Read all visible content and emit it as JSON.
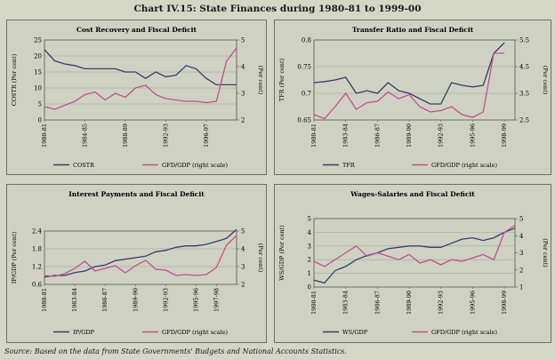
{
  "page_title": "Chart IV.15: State Finances during 1980-81 to 1999-00",
  "source_note": "Source: Based on the data from State Governments' Budgets and National Accounts Statistics.",
  "colors": {
    "left_series": "#3a3a6e",
    "right_series": "#c0508f",
    "grid": "#9aa08c"
  },
  "chart_data": [
    {
      "type": "line",
      "title": "Cost Recovery and Fiscal Deficit",
      "x": [
        "1980-81",
        "1981-82",
        "1982-83",
        "1983-84",
        "1984-85",
        "1985-86",
        "1986-87",
        "1987-88",
        "1988-89",
        "1989-90",
        "1990-91",
        "1991-92",
        "1992-93",
        "1993-94",
        "1994-95",
        "1995-96",
        "1996-97",
        "1997-98",
        "1998-99",
        "1999-00"
      ],
      "xticks": [
        "1980-81",
        "1984-85",
        "1988-89",
        "1992-93",
        "1996-97"
      ],
      "ylabel": "COSTR (Per cent)",
      "y2label": "(Per cent)",
      "ylim": [
        0,
        25
      ],
      "yticks": [
        0,
        5,
        10,
        15,
        20,
        25
      ],
      "y2lim": [
        2,
        5
      ],
      "y2ticks": [
        2,
        3,
        4,
        5
      ],
      "series": [
        {
          "name": "COSTR",
          "axis": "left",
          "values": [
            22,
            18.5,
            17.5,
            17,
            16,
            16,
            16,
            16,
            15,
            15,
            13,
            15,
            13.5,
            14,
            17,
            16,
            13,
            11,
            11,
            11
          ]
        },
        {
          "name": "GFD/GDP (right scale)",
          "axis": "right",
          "values": [
            2.5,
            2.4,
            2.55,
            2.7,
            2.95,
            3.05,
            2.75,
            3.0,
            2.85,
            3.2,
            3.3,
            2.95,
            2.8,
            2.75,
            2.7,
            2.7,
            2.65,
            2.7,
            4.2,
            4.7
          ]
        }
      ]
    },
    {
      "type": "line",
      "title": "Transfer Ratio and Fiscal Deficit",
      "x": [
        "1980-81",
        "1981-82",
        "1982-83",
        "1983-84",
        "1984-85",
        "1985-86",
        "1986-87",
        "1987-88",
        "1988-89",
        "1989-90",
        "1990-91",
        "1991-92",
        "1992-93",
        "1993-94",
        "1994-95",
        "1995-96",
        "1996-97",
        "1997-98",
        "1998-99",
        "1999-00"
      ],
      "xticks": [
        "1980-81",
        "1983-84",
        "1986-87",
        "1989-90",
        "1992-93",
        "1995-96",
        "1998-99"
      ],
      "ylabel": "TFR (Per cent)",
      "y2label": "(Per cent)",
      "ylim": [
        0.65,
        0.8
      ],
      "yticks": [
        0.65,
        0.7,
        0.75,
        0.8
      ],
      "y2lim": [
        2.5,
        5.5
      ],
      "y2ticks": [
        2.5,
        3.5,
        4.5,
        5.5
      ],
      "series": [
        {
          "name": "TFR",
          "axis": "left",
          "values": [
            0.72,
            0.722,
            0.725,
            0.73,
            0.7,
            0.705,
            0.7,
            0.72,
            0.705,
            0.7,
            0.69,
            0.68,
            0.68,
            0.72,
            0.715,
            0.712,
            0.715,
            0.775,
            0.795,
            null
          ]
        },
        {
          "name": "GFD/GDP (right scale)",
          "axis": "right",
          "values": [
            2.7,
            2.55,
            3.0,
            3.5,
            2.9,
            3.15,
            3.2,
            3.55,
            3.3,
            3.45,
            3.0,
            2.8,
            2.85,
            3.0,
            2.7,
            2.6,
            2.8,
            5.0,
            5.0,
            null
          ]
        }
      ]
    },
    {
      "type": "line",
      "title": "Interest Payments and Fiscal Deficit",
      "x": [
        "1980-81",
        "1981-82",
        "1982-83",
        "1983-84",
        "1984-85",
        "1985-86",
        "1986-87",
        "1987-88",
        "1988-89",
        "1989-90",
        "1990-91",
        "1991-92",
        "1992-93",
        "1993-94",
        "1994-95",
        "1995-96",
        "1996-97",
        "1997-98",
        "1998-99",
        "1999-00"
      ],
      "xticks": [
        "1980-81",
        "1983-84",
        "1986-87",
        "1989-90",
        "1992-93",
        "1995-96",
        "1997-98"
      ],
      "ylabel": "IP/GDP (Per cent)",
      "y2label": "(Per cent)",
      "ylim": [
        0.6,
        2.4
      ],
      "yticks": [
        0.6,
        1.2,
        1.8,
        2.4
      ],
      "y2lim": [
        2,
        5
      ],
      "y2ticks": [
        2,
        3,
        4,
        5
      ],
      "series": [
        {
          "name": "IP/GDP",
          "axis": "left",
          "values": [
            0.85,
            0.9,
            0.9,
            1.0,
            1.05,
            1.2,
            1.25,
            1.4,
            1.45,
            1.5,
            1.55,
            1.7,
            1.75,
            1.85,
            1.9,
            1.9,
            1.95,
            2.05,
            2.15,
            2.45
          ]
        },
        {
          "name": "GFD/GDP (right scale)",
          "axis": "right",
          "values": [
            2.5,
            2.45,
            2.6,
            2.9,
            3.3,
            2.75,
            2.9,
            3.05,
            2.65,
            3.05,
            3.35,
            2.85,
            2.8,
            2.5,
            2.55,
            2.5,
            2.55,
            2.95,
            4.2,
            4.75
          ]
        }
      ]
    },
    {
      "type": "line",
      "title": "Wages-Salaries and Fiscal Deficit",
      "x": [
        "1980-81",
        "1981-82",
        "1982-83",
        "1983-84",
        "1984-85",
        "1985-86",
        "1986-87",
        "1987-88",
        "1988-89",
        "1989-90",
        "1990-91",
        "1991-92",
        "1992-93",
        "1993-94",
        "1994-95",
        "1995-96",
        "1996-97",
        "1997-98",
        "1998-99",
        "1999-00"
      ],
      "xticks": [
        "1980-81",
        "1983-84",
        "1986-87",
        "1989-90",
        "1992-93",
        "1995-96",
        "1998-99"
      ],
      "ylabel": "WS/GDP (Per cent)",
      "y2label": "(Per cent)",
      "ylim": [
        0,
        5
      ],
      "yticks": [
        0,
        1,
        2,
        3,
        4,
        5
      ],
      "y2lim": [
        1,
        5
      ],
      "y2ticks": [
        1,
        2,
        3,
        4,
        5
      ],
      "series": [
        {
          "name": "WS/GDP",
          "axis": "left",
          "values": [
            0.5,
            0.3,
            1.2,
            1.5,
            2.0,
            2.3,
            2.5,
            2.8,
            2.9,
            3.0,
            3.0,
            2.9,
            2.9,
            3.2,
            3.5,
            3.6,
            3.4,
            3.6,
            4.0,
            4.3
          ]
        },
        {
          "name": "GFD/GDP (right scale)",
          "axis": "right",
          "values": [
            2.5,
            2.2,
            2.6,
            3.0,
            3.4,
            2.8,
            3.0,
            2.8,
            2.6,
            2.9,
            2.4,
            2.6,
            2.3,
            2.6,
            2.5,
            2.7,
            2.9,
            2.6,
            4.2,
            4.6
          ]
        }
      ]
    }
  ]
}
